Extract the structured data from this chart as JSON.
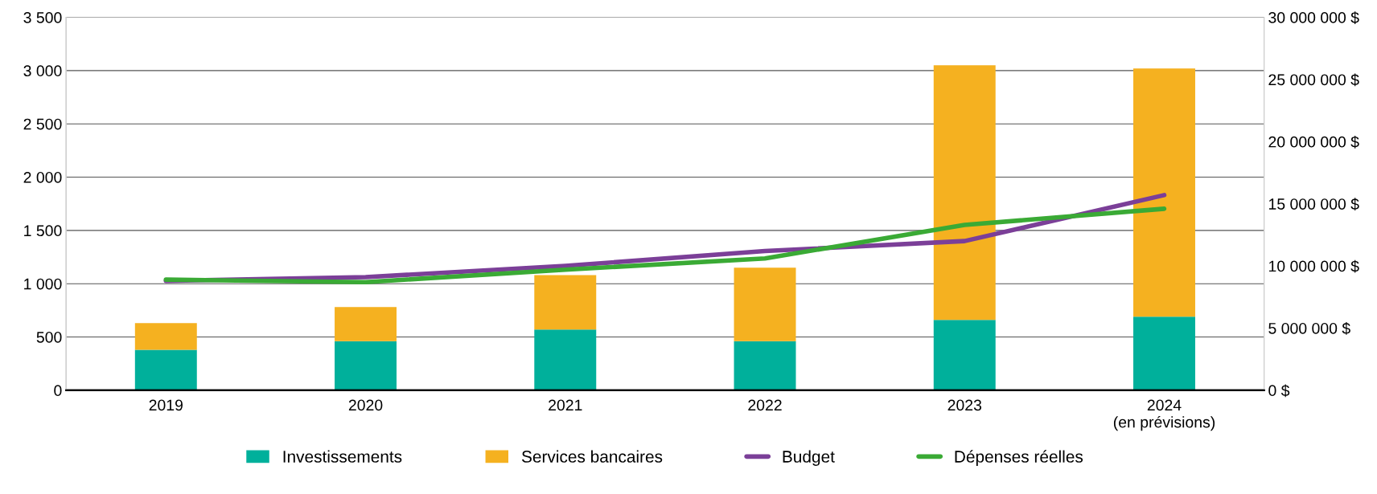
{
  "chart_data": {
    "type": "bar",
    "stacked": true,
    "categories": [
      "2019",
      "2020",
      "2021",
      "2022",
      "2023",
      "2024\n(en prévisions)"
    ],
    "series": [
      {
        "name": "Investissements",
        "color": "#00b09b",
        "values": [
          380,
          460,
          570,
          460,
          660,
          690
        ]
      },
      {
        "name": "Services bancaires",
        "color": "#f5b120",
        "values": [
          250,
          320,
          510,
          690,
          2390,
          2330
        ]
      },
      {
        "name": "Budget",
        "type": "line",
        "axis": "y2",
        "color": "#7b3f98",
        "values": [
          8800000,
          9100000,
          10000000,
          11200000,
          12000000,
          15700000
        ]
      },
      {
        "name": "Dépenses réelles",
        "type": "line",
        "axis": "y2",
        "color": "#3aaa35",
        "values": [
          8900000,
          8700000,
          9700000,
          10600000,
          13300000,
          14600000
        ]
      }
    ],
    "ylim": [
      0,
      3500
    ],
    "yticks": [
      {
        "value": 0,
        "label": "0"
      },
      {
        "value": 500,
        "label": "500"
      },
      {
        "value": 1000,
        "label": "1 000"
      },
      {
        "value": 1500,
        "label": "1 500"
      },
      {
        "value": 2000,
        "label": "2 000"
      },
      {
        "value": 2500,
        "label": "2 500"
      },
      {
        "value": 3000,
        "label": "3 000"
      },
      {
        "value": 3500,
        "label": "3 500"
      }
    ],
    "y2lim": [
      0,
      30000000
    ],
    "y2ticks": [
      {
        "value": 0,
        "label": "0 $"
      },
      {
        "value": 5000000,
        "label": "5 000 000 $"
      },
      {
        "value": 10000000,
        "label": "10 000 000 $"
      },
      {
        "value": 15000000,
        "label": "15 000 000 $"
      },
      {
        "value": 20000000,
        "label": "20 000 000 $"
      },
      {
        "value": 25000000,
        "label": "25 000 000 $"
      },
      {
        "value": 30000000,
        "label": "30 000 000 $"
      }
    ],
    "grid": "y",
    "legend": "bottom",
    "marker": "none",
    "line_style": "solid"
  }
}
